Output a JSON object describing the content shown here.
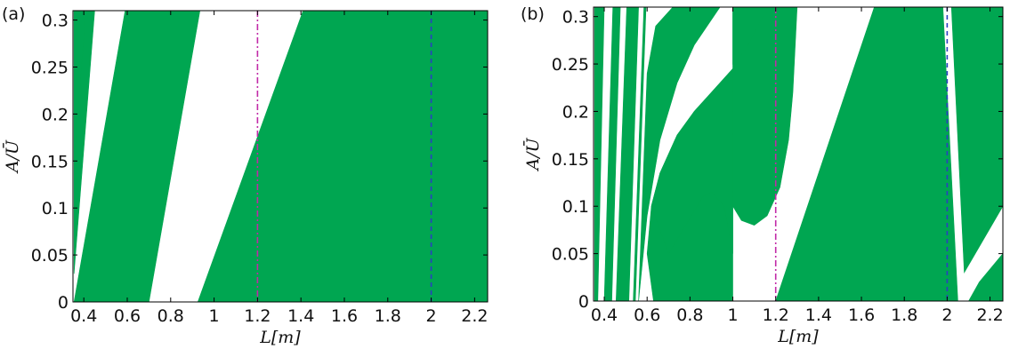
{
  "figure": {
    "green": "#00a651",
    "vline_magenta": "#c12aa8",
    "vline_blue": "#2a3fc1"
  },
  "chart_data": [
    {
      "type": "heatmap",
      "panel_label": "(a)",
      "xlabel": "L[m]",
      "ylabel": "A/Ū",
      "xlim": [
        0.35,
        2.26
      ],
      "ylim": [
        0,
        0.31
      ],
      "xticks": [
        0.4,
        0.6,
        0.8,
        1,
        1.2,
        1.4,
        1.6,
        1.8,
        2,
        2.2
      ],
      "xtick_labels": [
        "0.4",
        "0.6",
        "0.8",
        "1",
        "1.2",
        "1.4",
        "1.6",
        "1.8",
        "2",
        "2.2"
      ],
      "yticks": [
        0,
        0.05,
        0.1,
        0.15,
        0.2,
        0.25,
        0.3
      ],
      "ytick_labels": [
        "0",
        "0.05",
        "0.1",
        "0.15",
        "0.2",
        "0.25",
        "0.3"
      ],
      "fill_color": "#00a651",
      "vlines": [
        {
          "x": 1.2,
          "color": "#c12aa8",
          "style": "dash-dot"
        },
        {
          "x": 2.0,
          "color": "#2a3fc1",
          "style": "dashed"
        }
      ],
      "regions": [
        {
          "points": [
            [
              0.355,
              0
            ],
            [
              0.7,
              0
            ],
            [
              0.935,
              0.31
            ],
            [
              0.59,
              0.31
            ]
          ]
        },
        {
          "points": [
            [
              0.925,
              0
            ],
            [
              2.26,
              0
            ],
            [
              2.26,
              0.31
            ],
            [
              1.41,
              0.31
            ]
          ]
        },
        {
          "points": [
            [
              0.355,
              0.03
            ],
            [
              0.355,
              0.31
            ],
            [
              0.45,
              0.31
            ]
          ]
        },
        {
          "points": [
            [
              0.355,
              0.15
            ],
            [
              0.41,
              0.31
            ],
            [
              0.355,
              0.31
            ]
          ]
        }
      ]
    },
    {
      "type": "heatmap",
      "panel_label": "(b)",
      "xlabel": "L[m]",
      "ylabel": "A/Ū",
      "xlim": [
        0.35,
        2.26
      ],
      "ylim": [
        0,
        0.31
      ],
      "xticks": [
        0.4,
        0.6,
        0.8,
        1,
        1.2,
        1.4,
        1.6,
        1.8,
        2,
        2.2
      ],
      "xtick_labels": [
        "0.4",
        "0.6",
        "0.8",
        "1",
        "1.2",
        "1.4",
        "1.6",
        "1.8",
        "2",
        "2.2"
      ],
      "yticks": [
        0,
        0.05,
        0.1,
        0.15,
        0.2,
        0.25,
        0.3
      ],
      "ytick_labels": [
        "0",
        "0.05",
        "0.1",
        "0.15",
        "0.2",
        "0.25",
        "0.3"
      ],
      "fill_color": "#00a651",
      "vlines": [
        {
          "x": 1.2,
          "color": "#c12aa8",
          "style": "dash-dot"
        },
        {
          "x": 2.0,
          "color": "#2a3fc1",
          "style": "dashed"
        }
      ],
      "regions": [
        {
          "points": [
            [
              0.355,
              0
            ],
            [
              0.37,
              0
            ],
            [
              0.4,
              0.31
            ],
            [
              0.355,
              0.31
            ]
          ]
        },
        {
          "points": [
            [
              0.4,
              0
            ],
            [
              0.435,
              0
            ],
            [
              0.475,
              0.31
            ],
            [
              0.44,
              0.31
            ]
          ]
        },
        {
          "points": [
            [
              0.455,
              0
            ],
            [
              0.515,
              0
            ],
            [
              0.56,
              0.31
            ],
            [
              0.505,
              0.31
            ]
          ]
        },
        {
          "points": [
            [
              0.535,
              0
            ],
            [
              0.545,
              0
            ],
            [
              0.595,
              0.31
            ],
            [
              0.585,
              0.31
            ]
          ]
        },
        {
          "points": [
            [
              0.63,
              0
            ],
            [
              1.0,
              0
            ],
            [
              1.0,
              0.245
            ],
            [
              0.96,
              0.235
            ],
            [
              0.9,
              0.22
            ],
            [
              0.82,
              0.2
            ],
            [
              0.74,
              0.175
            ],
            [
              0.66,
              0.135
            ],
            [
              0.62,
              0.1
            ],
            [
              0.6,
              0.05
            ]
          ]
        },
        {
          "points": [
            [
              0.56,
              0
            ],
            [
              0.6,
              0.09
            ],
            [
              0.66,
              0.17
            ],
            [
              0.74,
              0.23
            ],
            [
              0.82,
              0.27
            ],
            [
              0.88,
              0.29
            ],
            [
              0.94,
              0.31
            ],
            [
              0.72,
              0.31
            ],
            [
              0.64,
              0.29
            ],
            [
              0.6,
              0.24
            ]
          ]
        },
        {
          "points": [
            [
              0.62,
              0.1
            ],
            [
              0.7,
              0.05
            ],
            [
              0.78,
              0.08
            ],
            [
              0.86,
              0.11
            ],
            [
              0.9,
              0.115
            ],
            [
              0.96,
              0.1
            ],
            [
              1.0,
              0.05
            ],
            [
              1.0,
              0.245
            ],
            [
              0.96,
              0.235
            ],
            [
              0.9,
              0.22
            ],
            [
              0.82,
              0.2
            ],
            [
              0.74,
              0.175
            ],
            [
              0.66,
              0.135
            ]
          ]
        },
        {
          "points": [
            [
              1.0,
              0.31
            ],
            [
              1.0,
              0.1
            ],
            [
              1.04,
              0.085
            ],
            [
              1.1,
              0.08
            ],
            [
              1.16,
              0.09
            ],
            [
              1.22,
              0.12
            ],
            [
              1.26,
              0.17
            ],
            [
              1.28,
              0.22
            ],
            [
              1.3,
              0.31
            ]
          ]
        },
        {
          "points": [
            [
              1.0,
              0.31
            ],
            [
              1.0,
              0.25
            ],
            [
              1.06,
              0.265
            ],
            [
              1.14,
              0.3
            ],
            [
              1.18,
              0.31
            ]
          ]
        },
        {
          "points": [
            [
              1.2,
              0
            ],
            [
              2.26,
              0
            ],
            [
              2.26,
              0.05
            ],
            [
              2.15,
              0.02
            ],
            [
              2.1,
              0
            ],
            [
              2.05,
              0
            ],
            [
              1.98,
              0.31
            ],
            [
              1.66,
              0.31
            ]
          ]
        },
        {
          "points": [
            [
              2.08,
              0.03
            ],
            [
              2.26,
              0.1
            ],
            [
              2.26,
              0.31
            ],
            [
              2.02,
              0.31
            ]
          ]
        }
      ]
    }
  ]
}
